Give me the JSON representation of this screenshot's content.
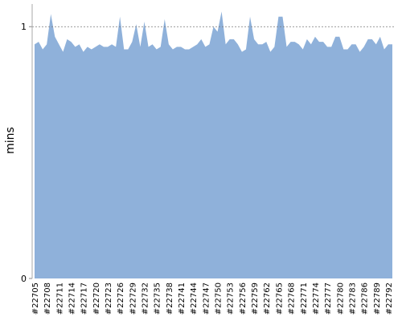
{
  "chart_data": {
    "type": "area",
    "y_label": "mins",
    "categories": [
      "#22705",
      null,
      null,
      "#22708",
      null,
      null,
      "#22711",
      null,
      null,
      "#22714",
      null,
      null,
      "#22717",
      null,
      null,
      "#22720",
      null,
      null,
      "#22723",
      null,
      null,
      "#22726",
      null,
      null,
      "#22729",
      null,
      null,
      "#22732",
      null,
      null,
      "#22735",
      null,
      null,
      "#22738",
      null,
      null,
      "#22741",
      null,
      null,
      "#22744",
      null,
      null,
      "#22747",
      null,
      null,
      "#22750",
      null,
      null,
      "#22753",
      null,
      null,
      "#22756",
      null,
      null,
      "#22759",
      null,
      null,
      "#22762",
      null,
      null,
      "#22765",
      null,
      null,
      "#22768",
      null,
      null,
      "#22771",
      null,
      null,
      "#22774",
      null,
      null,
      "#22777",
      null,
      null,
      "#22780",
      null,
      null,
      "#22783",
      null,
      null,
      "#22786",
      null,
      null,
      "#22789",
      null,
      null,
      "#22792",
      null
    ],
    "values": [
      0.93,
      0.94,
      0.91,
      0.93,
      1.05,
      0.96,
      0.93,
      0.9,
      0.95,
      0.94,
      0.92,
      0.93,
      0.9,
      0.92,
      0.91,
      0.92,
      0.93,
      0.92,
      0.92,
      0.93,
      0.92,
      1.04,
      0.91,
      0.91,
      0.94,
      1.01,
      0.92,
      1.02,
      0.92,
      0.93,
      0.91,
      0.92,
      1.03,
      0.93,
      0.91,
      0.92,
      0.92,
      0.91,
      0.91,
      0.92,
      0.93,
      0.95,
      0.92,
      0.93,
      1.0,
      0.98,
      1.06,
      0.93,
      0.95,
      0.95,
      0.93,
      0.9,
      0.91,
      1.04,
      0.95,
      0.93,
      0.93,
      0.94,
      0.9,
      0.92,
      1.04,
      1.04,
      0.92,
      0.94,
      0.94,
      0.93,
      0.91,
      0.95,
      0.93,
      0.96,
      0.94,
      0.94,
      0.92,
      0.92,
      0.96,
      0.96,
      0.91,
      0.91,
      0.93,
      0.93,
      0.9,
      0.92,
      0.95,
      0.95,
      0.93,
      0.96,
      0.91,
      0.93,
      0.93
    ],
    "color": "#8fb1da",
    "ylim": [
      0,
      1.09
    ],
    "yticks": [
      0,
      1
    ],
    "grid": true
  }
}
